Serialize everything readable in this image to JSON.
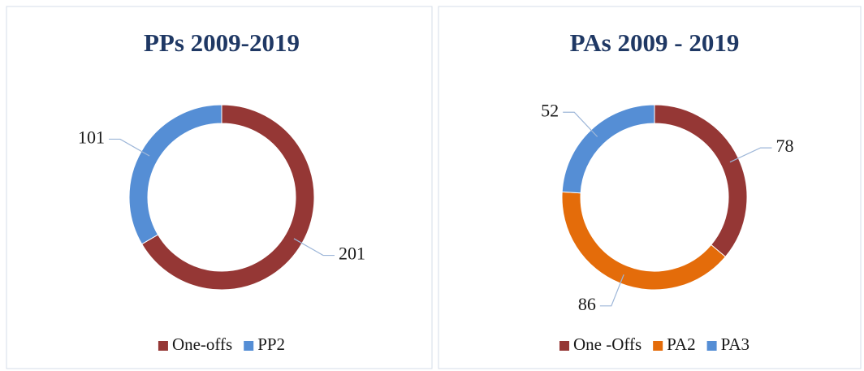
{
  "chart_data": [
    {
      "type": "donut",
      "title": "PPs 2009-2019",
      "categories": [
        "One-offs",
        "PP2"
      ],
      "values": [
        201,
        101
      ],
      "colors": [
        "#953735",
        "#558ed5"
      ],
      "legend": "bottom"
    },
    {
      "type": "donut",
      "title": "PAs 2009 - 2019",
      "categories": [
        "One -Offs",
        "PA2",
        "PA3"
      ],
      "values": [
        78,
        86,
        52
      ],
      "colors": [
        "#953735",
        "#e46c0a",
        "#558ed5"
      ],
      "legend": "bottom"
    }
  ]
}
